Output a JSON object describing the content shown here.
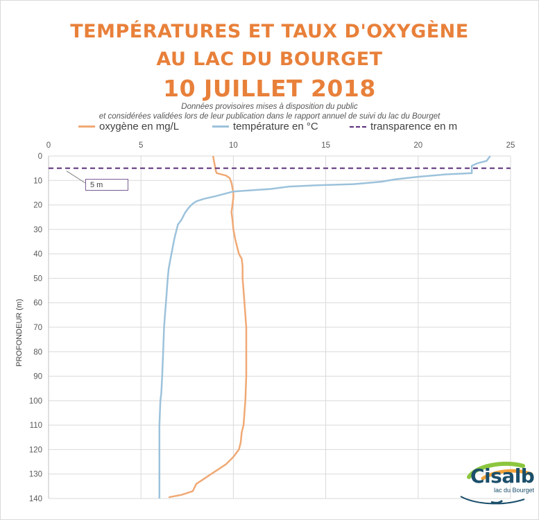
{
  "chart_data": {
    "type": "line",
    "title": "TEMPÉRATURES ET TAUX D'OXYGÈNE",
    "title_line2": "AU LAC DU BOURGET",
    "title_line3": "10 JUILLET 2018",
    "subtitle_line1": "Données provisoires mises à disposition du public",
    "subtitle_line2": "et considérées validées lors de leur publication dans le rapport annuel de suivi du lac du Bourget",
    "ylabel": "PROFONDEUR (m)",
    "xlabel": "",
    "xlim": [
      0,
      25
    ],
    "ylim": [
      0,
      140
    ],
    "y_inverted": true,
    "x_axis_position": "top",
    "xticks": [
      "0",
      "5",
      "10",
      "15",
      "20",
      "25"
    ],
    "yticks": [
      "0",
      "10",
      "20",
      "30",
      "40",
      "50",
      "60",
      "70",
      "80",
      "90",
      "100",
      "110",
      "120",
      "130",
      "140"
    ],
    "grid": true,
    "legend_position": "top",
    "series": [
      {
        "name": "oxygène en mg/L",
        "color": "#f0a975",
        "style": "solid",
        "points": [
          [
            8.9,
            0
          ],
          [
            8.95,
            2
          ],
          [
            9.0,
            4
          ],
          [
            9.05,
            6
          ],
          [
            9.1,
            7
          ],
          [
            9.6,
            8
          ],
          [
            9.8,
            9
          ],
          [
            9.9,
            11
          ],
          [
            9.95,
            13
          ],
          [
            10.0,
            15
          ],
          [
            10.0,
            17
          ],
          [
            9.95,
            20
          ],
          [
            9.9,
            23
          ],
          [
            9.95,
            26
          ],
          [
            10.0,
            30
          ],
          [
            10.1,
            34
          ],
          [
            10.2,
            37
          ],
          [
            10.3,
            40
          ],
          [
            10.45,
            42
          ],
          [
            10.5,
            45
          ],
          [
            10.5,
            50
          ],
          [
            10.55,
            55
          ],
          [
            10.6,
            60
          ],
          [
            10.65,
            65
          ],
          [
            10.7,
            70
          ],
          [
            10.7,
            80
          ],
          [
            10.7,
            90
          ],
          [
            10.65,
            100
          ],
          [
            10.6,
            105
          ],
          [
            10.55,
            110
          ],
          [
            10.45,
            113
          ],
          [
            10.4,
            117
          ],
          [
            10.3,
            120
          ],
          [
            10.0,
            123
          ],
          [
            9.6,
            126
          ],
          [
            9.2,
            128
          ],
          [
            8.8,
            130
          ],
          [
            8.4,
            132
          ],
          [
            8.0,
            134
          ],
          [
            7.8,
            137
          ],
          [
            7.2,
            138.5
          ],
          [
            6.5,
            139.5
          ]
        ]
      },
      {
        "name": "température en °C",
        "color": "#9cc2db",
        "style": "solid",
        "points": [
          [
            23.9,
            0
          ],
          [
            23.7,
            2
          ],
          [
            23.2,
            3
          ],
          [
            22.9,
            4
          ],
          [
            22.9,
            7
          ],
          [
            21.5,
            7.5
          ],
          [
            20.0,
            8.5
          ],
          [
            18.8,
            9.5
          ],
          [
            18.0,
            10.5
          ],
          [
            16.5,
            11.5
          ],
          [
            14.5,
            12
          ],
          [
            13.0,
            12.5
          ],
          [
            12.0,
            13.5
          ],
          [
            11.0,
            14
          ],
          [
            10.0,
            14.5
          ],
          [
            9.5,
            15.5
          ],
          [
            9.0,
            16.5
          ],
          [
            8.4,
            17.5
          ],
          [
            8.0,
            18.5
          ],
          [
            7.8,
            19.5
          ],
          [
            7.6,
            21
          ],
          [
            7.4,
            23
          ],
          [
            7.2,
            26
          ],
          [
            7.0,
            28
          ],
          [
            6.9,
            31
          ],
          [
            6.8,
            34
          ],
          [
            6.7,
            38
          ],
          [
            6.6,
            42
          ],
          [
            6.5,
            46
          ],
          [
            6.45,
            50
          ],
          [
            6.4,
            55
          ],
          [
            6.35,
            60
          ],
          [
            6.3,
            65
          ],
          [
            6.25,
            70
          ],
          [
            6.2,
            80
          ],
          [
            6.15,
            90
          ],
          [
            6.1,
            97
          ],
          [
            6.05,
            100
          ],
          [
            6.0,
            110
          ],
          [
            6.0,
            120
          ],
          [
            6.0,
            130
          ],
          [
            6.0,
            140
          ]
        ]
      },
      {
        "name": "transparence en m",
        "color": "#5b2c7a",
        "style": "dashed",
        "points": [
          [
            0,
            5
          ],
          [
            25,
            5
          ]
        ]
      }
    ],
    "annotations": [
      {
        "text": "5 m",
        "target": [
          1.2,
          5
        ]
      }
    ]
  },
  "logo": {
    "name": "Cisalb",
    "subtitle": "lac du Bourget"
  }
}
